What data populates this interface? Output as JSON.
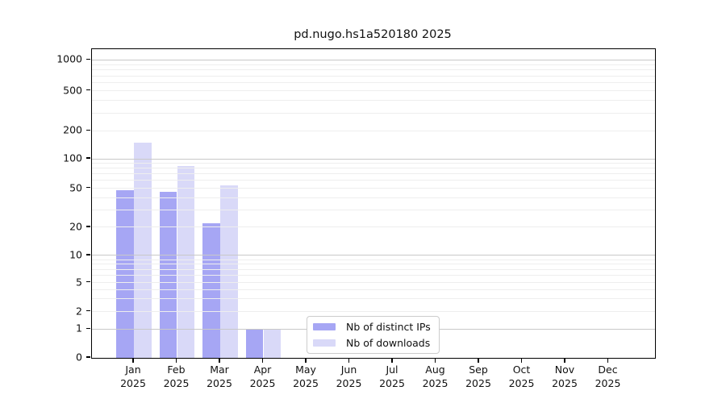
{
  "chart_data": {
    "type": "bar",
    "title": "pd.nugo.hs1a520180 2025",
    "categories": [
      "Jan 2025",
      "Feb 2025",
      "Mar 2025",
      "Apr 2025",
      "May 2025",
      "Jun 2025",
      "Jul 2025",
      "Aug 2025",
      "Sep 2025",
      "Oct 2025",
      "Nov 2025",
      "Dec 2025"
    ],
    "series": [
      {
        "name": "Nb of distinct IPs",
        "color": "#a6a6f4",
        "values": [
          48,
          46,
          22,
          1,
          0,
          0,
          0,
          0,
          0,
          0,
          0,
          0
        ]
      },
      {
        "name": "Nb of downloads",
        "color": "#d9d9f8",
        "values": [
          150,
          85,
          53,
          1,
          0,
          0,
          0,
          0,
          0,
          0,
          0,
          0
        ]
      }
    ],
    "y_axis": {
      "scale": "symlog",
      "tick_labels": [
        "1000",
        "500",
        "200",
        "100",
        "50",
        "20",
        "10",
        "5",
        "2",
        "1",
        "0"
      ],
      "tick_values": [
        1000,
        500,
        200,
        100,
        50,
        20,
        10,
        5,
        2,
        1,
        0
      ],
      "grid_major_values": [
        1,
        10,
        100,
        1000
      ],
      "grid_minor_values": [
        2,
        3,
        4,
        5,
        6,
        7,
        8,
        9,
        20,
        30,
        40,
        50,
        60,
        70,
        80,
        90,
        200,
        300,
        400,
        500,
        600,
        700,
        800,
        900
      ]
    },
    "legend_position": "bottom-center",
    "grid": true,
    "colors": {
      "grid_major": "#c8c8c8",
      "grid_minor": "#eeeeee",
      "axis": "#000000",
      "text": "#111111",
      "background": "#ffffff"
    }
  }
}
